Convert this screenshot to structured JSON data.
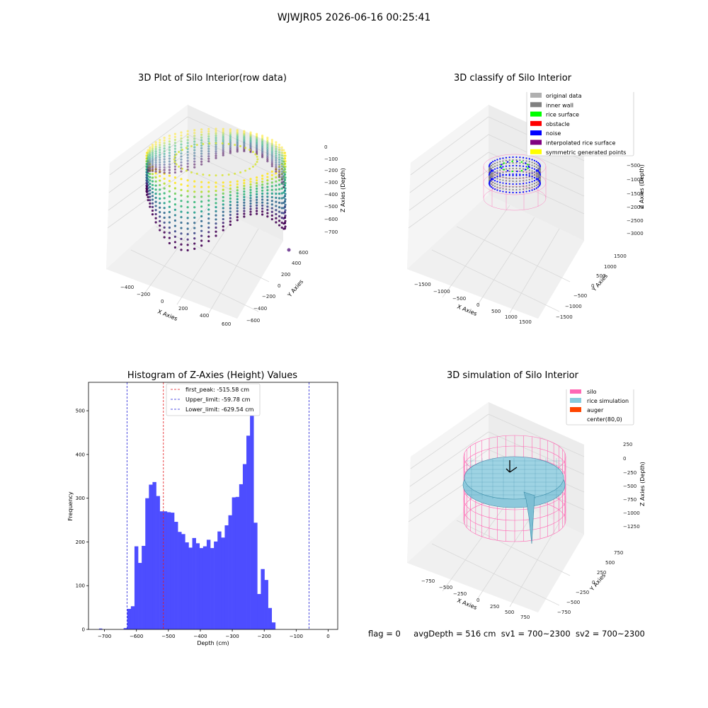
{
  "figure": {
    "suptitle": "WJWJR05 2026-06-16 00:25:41",
    "status": {
      "flag": "flag = 0",
      "avg_depth": "avgDepth = 516 cm",
      "sv1": "sv1 = 700~2300",
      "sv2": "sv2 = 700~2300"
    }
  },
  "colors": {
    "bar": "#4d4dff",
    "peak_line": "#e41a1c",
    "limit_line": "#1f1fd6",
    "silo": "#ff69b4",
    "rice": "#88ccdd",
    "auger": "#ff4500",
    "inner_wall": "#808080",
    "rice_surface": "#00ff00",
    "obstacle": "#ff0000",
    "noise": "#0000ff",
    "interp_surface": "#800080",
    "symmetric": "#ffff00",
    "original": "#b0b0b0"
  },
  "panels": {
    "raw": {
      "title": "3D Plot of Silo Interior(row data)",
      "xlabel": "X Axies",
      "ylabel": "Y Axies",
      "zlabel": "Z Axies (Depth)",
      "xticks": [
        "−400",
        "−200",
        "0",
        "200",
        "400",
        "600"
      ],
      "yticks": [
        "600",
        "400",
        "200",
        "0",
        "−200",
        "−400",
        "−600"
      ],
      "zticks": [
        "0",
        "−100",
        "−200",
        "−300",
        "−400",
        "−500",
        "−600",
        "−700"
      ]
    },
    "classify": {
      "title": "3D classify of Silo Interior",
      "xlabel": "X Axies",
      "ylabel": "Y Axies",
      "zlabel": "Z Axies (Depth)",
      "xticks": [
        "−1500",
        "−1000",
        "−500",
        "0",
        "500",
        "1000",
        "1500"
      ],
      "yticks": [
        "1500",
        "1000",
        "500",
        "0",
        "−500",
        "−1000",
        "−1500"
      ],
      "zticks": [
        "0",
        "−500",
        "−1000",
        "−1500",
        "−2000",
        "−2500",
        "−3000"
      ],
      "legend": [
        "original data",
        "inner wall",
        "rice surface",
        "obstacle",
        "noise",
        "interpolated rice surface",
        "symmetric generated points"
      ]
    },
    "simulation": {
      "title": "3D simulation of Silo Interior",
      "xlabel": "X Axies",
      "ylabel": "Y Axies",
      "zlabel": "Z Axies (Depth)",
      "xticks": [
        "−750",
        "−500",
        "−250",
        "0",
        "250",
        "500",
        "750"
      ],
      "yticks": [
        "750",
        "500",
        "250",
        "0",
        "−250",
        "−500",
        "−750"
      ],
      "zticks": [
        "250",
        "0",
        "−250",
        "−500",
        "−750",
        "−1000",
        "−1250"
      ],
      "legend": [
        "silo",
        "rice simulation",
        "auger",
        "center(80,0)"
      ]
    }
  },
  "chart_data": [
    {
      "type": "scatter",
      "title": "3D Plot of Silo Interior(row data)",
      "xlabel": "X Axies",
      "ylabel": "Y Axies",
      "zlabel": "Z Axies (Depth)",
      "xlim": [
        -500,
        700
      ],
      "ylim": [
        -650,
        650
      ],
      "zlim": [
        -750,
        20
      ],
      "grid": true
    },
    {
      "type": "scatter",
      "title": "3D classify of Silo Interior",
      "xlabel": "X Axies",
      "ylabel": "Y Axies",
      "zlabel": "Z Axies (Depth)",
      "xlim": [
        -1600,
        1600
      ],
      "ylim": [
        -1600,
        1600
      ],
      "zlim": [
        -3200,
        100
      ],
      "legend_position": "top-right",
      "grid": true
    },
    {
      "type": "bar",
      "title": "Histogram of Z-Axies (Height) Values",
      "xlabel": "Depth (cm)",
      "ylabel": "Frequency",
      "xlim": [
        -750,
        30
      ],
      "ylim": [
        0,
        565
      ],
      "xticks": [
        -700,
        -600,
        -500,
        -400,
        -300,
        -200,
        -100,
        0
      ],
      "yticks": [
        0,
        100,
        200,
        300,
        400,
        500
      ],
      "bin_start": -640,
      "bin_width": 11.3,
      "values": [
        3,
        47,
        53,
        190,
        152,
        191,
        300,
        331,
        337,
        305,
        270,
        270,
        268,
        267,
        246,
        223,
        218,
        199,
        187,
        209,
        197,
        186,
        190,
        205,
        186,
        201,
        224,
        210,
        238,
        261,
        302,
        303,
        332,
        378,
        443,
        540,
        244,
        81,
        138,
        113,
        49,
        16
      ],
      "outlier": {
        "x": -712,
        "value": 2
      },
      "lines": [
        {
          "name": "first_peak: -515.58 cm",
          "x": -515.58,
          "style": "peak"
        },
        {
          "name": "Upper_limit: -59.78 cm",
          "x": -59.78,
          "style": "limit"
        },
        {
          "name": "Lower_limit: -629.54 cm",
          "x": -629.54,
          "style": "limit"
        }
      ],
      "legend_position": "top-center"
    },
    {
      "type": "surface",
      "title": "3D simulation of Silo Interior",
      "xlabel": "X Axies",
      "ylabel": "Y Axies",
      "zlabel": "Z Axies (Depth)",
      "xlim": [
        -850,
        850
      ],
      "ylim": [
        -850,
        850
      ],
      "zlim": [
        -1400,
        350
      ],
      "legend_position": "top-right",
      "grid": true
    }
  ]
}
